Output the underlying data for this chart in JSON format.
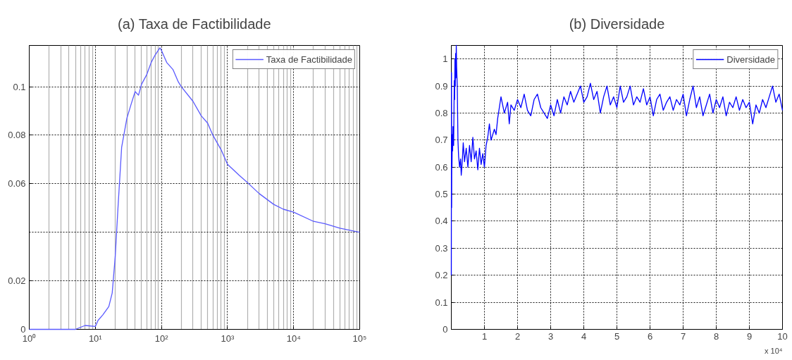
{
  "chart_data": [
    {
      "type": "line",
      "title": "(a) Taxa de Factibilidade",
      "log": "x",
      "grid": true,
      "legend": "top right",
      "x": [
        1,
        5,
        7,
        10,
        11,
        13,
        16,
        18,
        20,
        22,
        25,
        30,
        35,
        40,
        45,
        50,
        60,
        70,
        80,
        95,
        100,
        120,
        150,
        180,
        200,
        300,
        400,
        500,
        600,
        800,
        1000,
        1500,
        2000,
        3000,
        5000,
        7000,
        10000,
        20000,
        30000,
        50000,
        100000
      ],
      "series": [
        {
          "name": "Taxa de Factibilidade",
          "color": "#5a5aff",
          "values": [
            0,
            0,
            0.0016,
            0.0012,
            0.0037,
            0.006,
            0.0094,
            0.015,
            0.03,
            0.05,
            0.075,
            0.087,
            0.093,
            0.098,
            0.0965,
            0.101,
            0.105,
            0.11,
            0.113,
            0.116,
            0.115,
            0.11,
            0.107,
            0.102,
            0.1,
            0.094,
            0.088,
            0.085,
            0.08,
            0.074,
            0.068,
            0.0635,
            0.0605,
            0.056,
            0.0515,
            0.0495,
            0.0483,
            0.0445,
            0.0435,
            0.0417,
            0.04
          ]
        }
      ],
      "xlim": [
        1,
        100000
      ],
      "ylim": [
        0,
        0.117
      ],
      "xticks": [
        {
          "value": 1,
          "label": "10⁰"
        },
        {
          "value": 10,
          "label": "10¹"
        },
        {
          "value": 100,
          "label": "10²"
        },
        {
          "value": 1000,
          "label": "10³"
        },
        {
          "value": 10000,
          "label": "10⁴"
        },
        {
          "value": 100000,
          "label": "10⁵"
        }
      ],
      "yticks": [
        0,
        0.02,
        {
          "value": 0.04,
          "label": null
        },
        0.06,
        0.08,
        0.1
      ]
    },
    {
      "type": "line",
      "title": "(b) Diversidade",
      "grid": true,
      "legend": "top right",
      "annotations": [
        "x 10⁴"
      ],
      "x": [
        0,
        0.005,
        0.01,
        0.015,
        0.02,
        0.03,
        0.04,
        0.05,
        0.07,
        0.09,
        0.1,
        0.11,
        0.12,
        0.13,
        0.14,
        0.15,
        0.16,
        0.18,
        0.2,
        0.22,
        0.25,
        0.28,
        0.3,
        0.33,
        0.36,
        0.4,
        0.45,
        0.5,
        0.55,
        0.6,
        0.65,
        0.7,
        0.75,
        0.8,
        0.85,
        0.9,
        0.95,
        1.0,
        1.05,
        1.1,
        1.15,
        1.2,
        1.3,
        1.35,
        1.4,
        1.45,
        1.5,
        1.6,
        1.7,
        1.75,
        1.8,
        1.9,
        2.0,
        2.1,
        2.2,
        2.3,
        2.4,
        2.5,
        2.6,
        2.7,
        2.8,
        2.9,
        3.0,
        3.1,
        3.2,
        3.3,
        3.4,
        3.5,
        3.6,
        3.7,
        3.8,
        3.9,
        4.0,
        4.1,
        4.2,
        4.3,
        4.4,
        4.5,
        4.6,
        4.7,
        4.8,
        4.9,
        5.0,
        5.1,
        5.2,
        5.3,
        5.4,
        5.5,
        5.6,
        5.7,
        5.8,
        5.9,
        6.0,
        6.1,
        6.2,
        6.3,
        6.4,
        6.5,
        6.6,
        6.7,
        6.8,
        6.9,
        7.0,
        7.1,
        7.2,
        7.3,
        7.4,
        7.5,
        7.6,
        7.7,
        7.8,
        7.9,
        8.0,
        8.1,
        8.2,
        8.3,
        8.4,
        8.5,
        8.6,
        8.7,
        8.8,
        8.9,
        9.0,
        9.1,
        9.2,
        9.3,
        9.4,
        9.5,
        9.6,
        9.7,
        9.8,
        9.9,
        10.0
      ],
      "series": [
        {
          "name": "Diversidade",
          "color": "#0000ff",
          "values": [
            0.2,
            0.95,
            0.45,
            0.7,
            0.6,
            0.72,
            0.66,
            0.75,
            0.68,
            0.92,
            0.85,
            1.0,
            0.9,
            1.02,
            0.93,
            1.05,
            0.97,
            0.9,
            0.7,
            0.64,
            0.6,
            0.63,
            0.57,
            0.62,
            0.69,
            0.62,
            0.67,
            0.6,
            0.68,
            0.62,
            0.71,
            0.63,
            0.66,
            0.59,
            0.67,
            0.61,
            0.65,
            0.6,
            0.68,
            0.71,
            0.76,
            0.7,
            0.74,
            0.72,
            0.78,
            0.82,
            0.86,
            0.8,
            0.84,
            0.76,
            0.83,
            0.81,
            0.85,
            0.82,
            0.87,
            0.81,
            0.79,
            0.85,
            0.87,
            0.82,
            0.8,
            0.78,
            0.83,
            0.79,
            0.85,
            0.8,
            0.86,
            0.83,
            0.88,
            0.84,
            0.87,
            0.9,
            0.84,
            0.86,
            0.91,
            0.85,
            0.88,
            0.8,
            0.86,
            0.9,
            0.83,
            0.86,
            0.82,
            0.9,
            0.84,
            0.86,
            0.9,
            0.83,
            0.86,
            0.84,
            0.89,
            0.83,
            0.86,
            0.79,
            0.85,
            0.87,
            0.81,
            0.84,
            0.86,
            0.81,
            0.85,
            0.83,
            0.87,
            0.79,
            0.85,
            0.9,
            0.82,
            0.86,
            0.79,
            0.83,
            0.87,
            0.8,
            0.85,
            0.82,
            0.86,
            0.79,
            0.84,
            0.82,
            0.86,
            0.81,
            0.85,
            0.82,
            0.84,
            0.76,
            0.83,
            0.8,
            0.85,
            0.82,
            0.86,
            0.9,
            0.84,
            0.87,
            0.81
          ]
        }
      ],
      "xlim": [
        0,
        10
      ],
      "ylim": [
        0,
        1.05
      ],
      "xticks": [
        {
          "value": 0,
          "label": null
        },
        1,
        2,
        3,
        4,
        5,
        6,
        7,
        8,
        9,
        10
      ],
      "yticks": [
        0,
        0.1,
        0.2,
        0.3,
        0.4,
        0.5,
        0.6,
        0.7,
        0.8,
        0.9,
        1
      ]
    }
  ]
}
